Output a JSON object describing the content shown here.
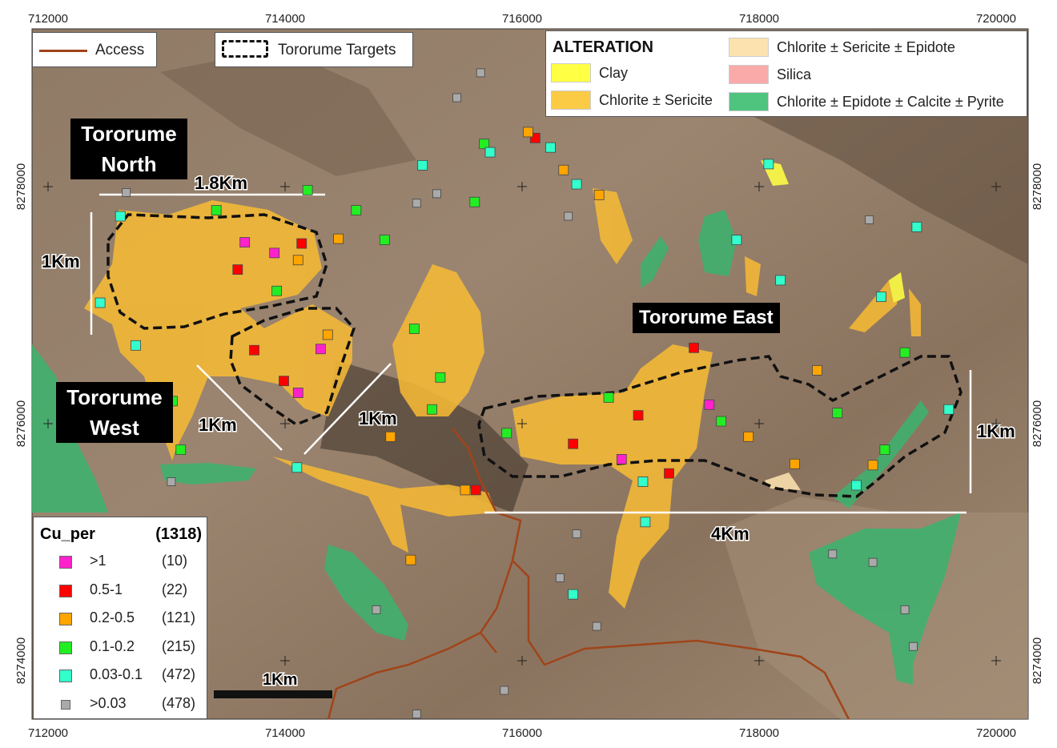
{
  "axes": {
    "easting_ticks": [
      "712000",
      "714000",
      "716000",
      "718000",
      "720000"
    ],
    "northing_ticks": [
      "8278000",
      "8276000",
      "8274000"
    ]
  },
  "top_legend": {
    "access": {
      "label": "Access",
      "color": "#A0441A"
    },
    "targets": {
      "label": "Tororume Targets"
    }
  },
  "alteration_legend": {
    "title": "ALTERATION",
    "items": [
      {
        "label": "Clay",
        "color": "#FFFF44"
      },
      {
        "label": "Chlorite ± Sericite",
        "color": "#FBCB45"
      },
      {
        "label": "Chlorite ± Sericite ± Epidote",
        "color": "#FCE2AE"
      },
      {
        "label": "Silica",
        "color": "#FBAAAA"
      },
      {
        "label": "Chlorite ± Epidote ± Calcite ± Pyrite",
        "color": "#4EC47F"
      }
    ]
  },
  "cu_legend": {
    "title": "Cu_per",
    "total": "(1318)",
    "classes": [
      {
        "range": ">1",
        "count": "(10)",
        "color": "#FF22CC"
      },
      {
        "range": "0.5-1",
        "count": "(22)",
        "color": "#FF0000"
      },
      {
        "range": "0.2-0.5",
        "count": "(121)",
        "color": "#FFA500"
      },
      {
        "range": "0.1-0.2",
        "count": "(215)",
        "color": "#22EE22"
      },
      {
        "range": "0.03-0.1",
        "count": "(472)",
        "color": "#33FFCC"
      },
      {
        "range": ">0.03",
        "count": "(478)",
        "color": "#AAAAAA"
      }
    ]
  },
  "area_labels": {
    "north": [
      "Tororume",
      "North"
    ],
    "west": [
      "Tororume",
      "West"
    ],
    "east": "Tororume East"
  },
  "scale_annotations": {
    "north_width": "1.8Km",
    "north_height": "1Km",
    "west_a": "1Km",
    "west_b": "1Km",
    "east_width": "4Km",
    "east_height": "1Km",
    "scale_bar": "1Km"
  },
  "samples": [
    {
      "e": 713660,
      "n": 8277530,
      "c": 0
    },
    {
      "e": 713910,
      "n": 8277440,
      "c": 0
    },
    {
      "e": 714300,
      "n": 8276630,
      "c": 0
    },
    {
      "e": 714110,
      "n": 8276260,
      "c": 0
    },
    {
      "e": 716840,
      "n": 8275700,
      "c": 0
    },
    {
      "e": 717580,
      "n": 8276160,
      "c": 0
    },
    {
      "e": 714140,
      "n": 8277520,
      "c": 1
    },
    {
      "e": 713600,
      "n": 8277300,
      "c": 1
    },
    {
      "e": 713740,
      "n": 8276620,
      "c": 1
    },
    {
      "e": 713990,
      "n": 8276360,
      "c": 1
    },
    {
      "e": 716110,
      "n": 8278410,
      "c": 1
    },
    {
      "e": 716980,
      "n": 8276070,
      "c": 1
    },
    {
      "e": 716430,
      "n": 8275830,
      "c": 1
    },
    {
      "e": 717450,
      "n": 8276640,
      "c": 1
    },
    {
      "e": 717240,
      "n": 8275580,
      "c": 1
    },
    {
      "e": 715610,
      "n": 8275440,
      "c": 1
    },
    {
      "e": 714450,
      "n": 8277560,
      "c": 2
    },
    {
      "e": 714110,
      "n": 8277380,
      "c": 2
    },
    {
      "e": 714360,
      "n": 8276750,
      "c": 2
    },
    {
      "e": 715520,
      "n": 8275440,
      "c": 2
    },
    {
      "e": 716050,
      "n": 8278460,
      "c": 2
    },
    {
      "e": 716350,
      "n": 8278140,
      "c": 2
    },
    {
      "e": 718490,
      "n": 8276450,
      "c": 2
    },
    {
      "e": 718300,
      "n": 8275660,
      "c": 2
    },
    {
      "e": 718960,
      "n": 8275650,
      "c": 2
    },
    {
      "e": 717910,
      "n": 8275890,
      "c": 2
    },
    {
      "e": 714890,
      "n": 8275890,
      "c": 2
    },
    {
      "e": 715060,
      "n": 8274850,
      "c": 2
    },
    {
      "e": 716650,
      "n": 8277930,
      "c": 2
    },
    {
      "e": 714190,
      "n": 8277970,
      "c": 3
    },
    {
      "e": 713420,
      "n": 8277800,
      "c": 3
    },
    {
      "e": 714600,
      "n": 8277800,
      "c": 3
    },
    {
      "e": 714840,
      "n": 8277550,
      "c": 3
    },
    {
      "e": 715090,
      "n": 8276800,
      "c": 3
    },
    {
      "e": 715310,
      "n": 8276390,
      "c": 3
    },
    {
      "e": 715240,
      "n": 8276120,
      "c": 3
    },
    {
      "e": 715680,
      "n": 8278360,
      "c": 3
    },
    {
      "e": 715600,
      "n": 8277870,
      "c": 3
    },
    {
      "e": 713930,
      "n": 8277120,
      "c": 3
    },
    {
      "e": 717680,
      "n": 8276020,
      "c": 3
    },
    {
      "e": 718660,
      "n": 8276090,
      "c": 3
    },
    {
      "e": 719060,
      "n": 8275780,
      "c": 3
    },
    {
      "e": 719230,
      "n": 8276600,
      "c": 3
    },
    {
      "e": 715870,
      "n": 8275920,
      "c": 3
    },
    {
      "e": 716730,
      "n": 8276220,
      "c": 3
    },
    {
      "e": 713050,
      "n": 8276190,
      "c": 3
    },
    {
      "e": 713120,
      "n": 8275780,
      "c": 3
    },
    {
      "e": 712610,
      "n": 8277750,
      "c": 4
    },
    {
      "e": 712440,
      "n": 8277020,
      "c": 4
    },
    {
      "e": 712740,
      "n": 8276660,
      "c": 4
    },
    {
      "e": 715160,
      "n": 8278180,
      "c": 4
    },
    {
      "e": 715730,
      "n": 8278290,
      "c": 4
    },
    {
      "e": 716240,
      "n": 8278330,
      "c": 4
    },
    {
      "e": 716460,
      "n": 8278020,
      "c": 4
    },
    {
      "e": 717810,
      "n": 8277550,
      "c": 4
    },
    {
      "e": 718180,
      "n": 8277210,
      "c": 4
    },
    {
      "e": 719030,
      "n": 8277070,
      "c": 4
    },
    {
      "e": 719330,
      "n": 8277660,
      "c": 4
    },
    {
      "e": 719600,
      "n": 8276120,
      "c": 4
    },
    {
      "e": 717020,
      "n": 8275510,
      "c": 4
    },
    {
      "e": 714100,
      "n": 8275630,
      "c": 4
    },
    {
      "e": 718820,
      "n": 8275480,
      "c": 4
    },
    {
      "e": 718080,
      "n": 8278190,
      "c": 4
    },
    {
      "e": 717040,
      "n": 8275170,
      "c": 4
    },
    {
      "e": 716430,
      "n": 8274560,
      "c": 4
    },
    {
      "e": 715450,
      "n": 8278750,
      "c": 5
    },
    {
      "e": 715110,
      "n": 8277860,
      "c": 5
    },
    {
      "e": 715280,
      "n": 8277940,
      "c": 5
    },
    {
      "e": 716390,
      "n": 8277750,
      "c": 5
    },
    {
      "e": 718930,
      "n": 8277720,
      "c": 5
    },
    {
      "e": 718620,
      "n": 8274900,
      "c": 5
    },
    {
      "e": 718960,
      "n": 8274830,
      "c": 5
    },
    {
      "e": 719230,
      "n": 8274430,
      "c": 5
    },
    {
      "e": 716460,
      "n": 8275070,
      "c": 5
    },
    {
      "e": 716320,
      "n": 8274700,
      "c": 5
    },
    {
      "e": 716630,
      "n": 8274290,
      "c": 5
    },
    {
      "e": 714770,
      "n": 8274430,
      "c": 5
    },
    {
      "e": 715110,
      "n": 8273550,
      "c": 5
    },
    {
      "e": 715850,
      "n": 8273750,
      "c": 5
    },
    {
      "e": 719300,
      "n": 8274120,
      "c": 5
    },
    {
      "e": 715650,
      "n": 8278960,
      "c": 5
    },
    {
      "e": 712660,
      "n": 8277950,
      "c": 5
    },
    {
      "e": 713040,
      "n": 8275510,
      "c": 5
    }
  ]
}
